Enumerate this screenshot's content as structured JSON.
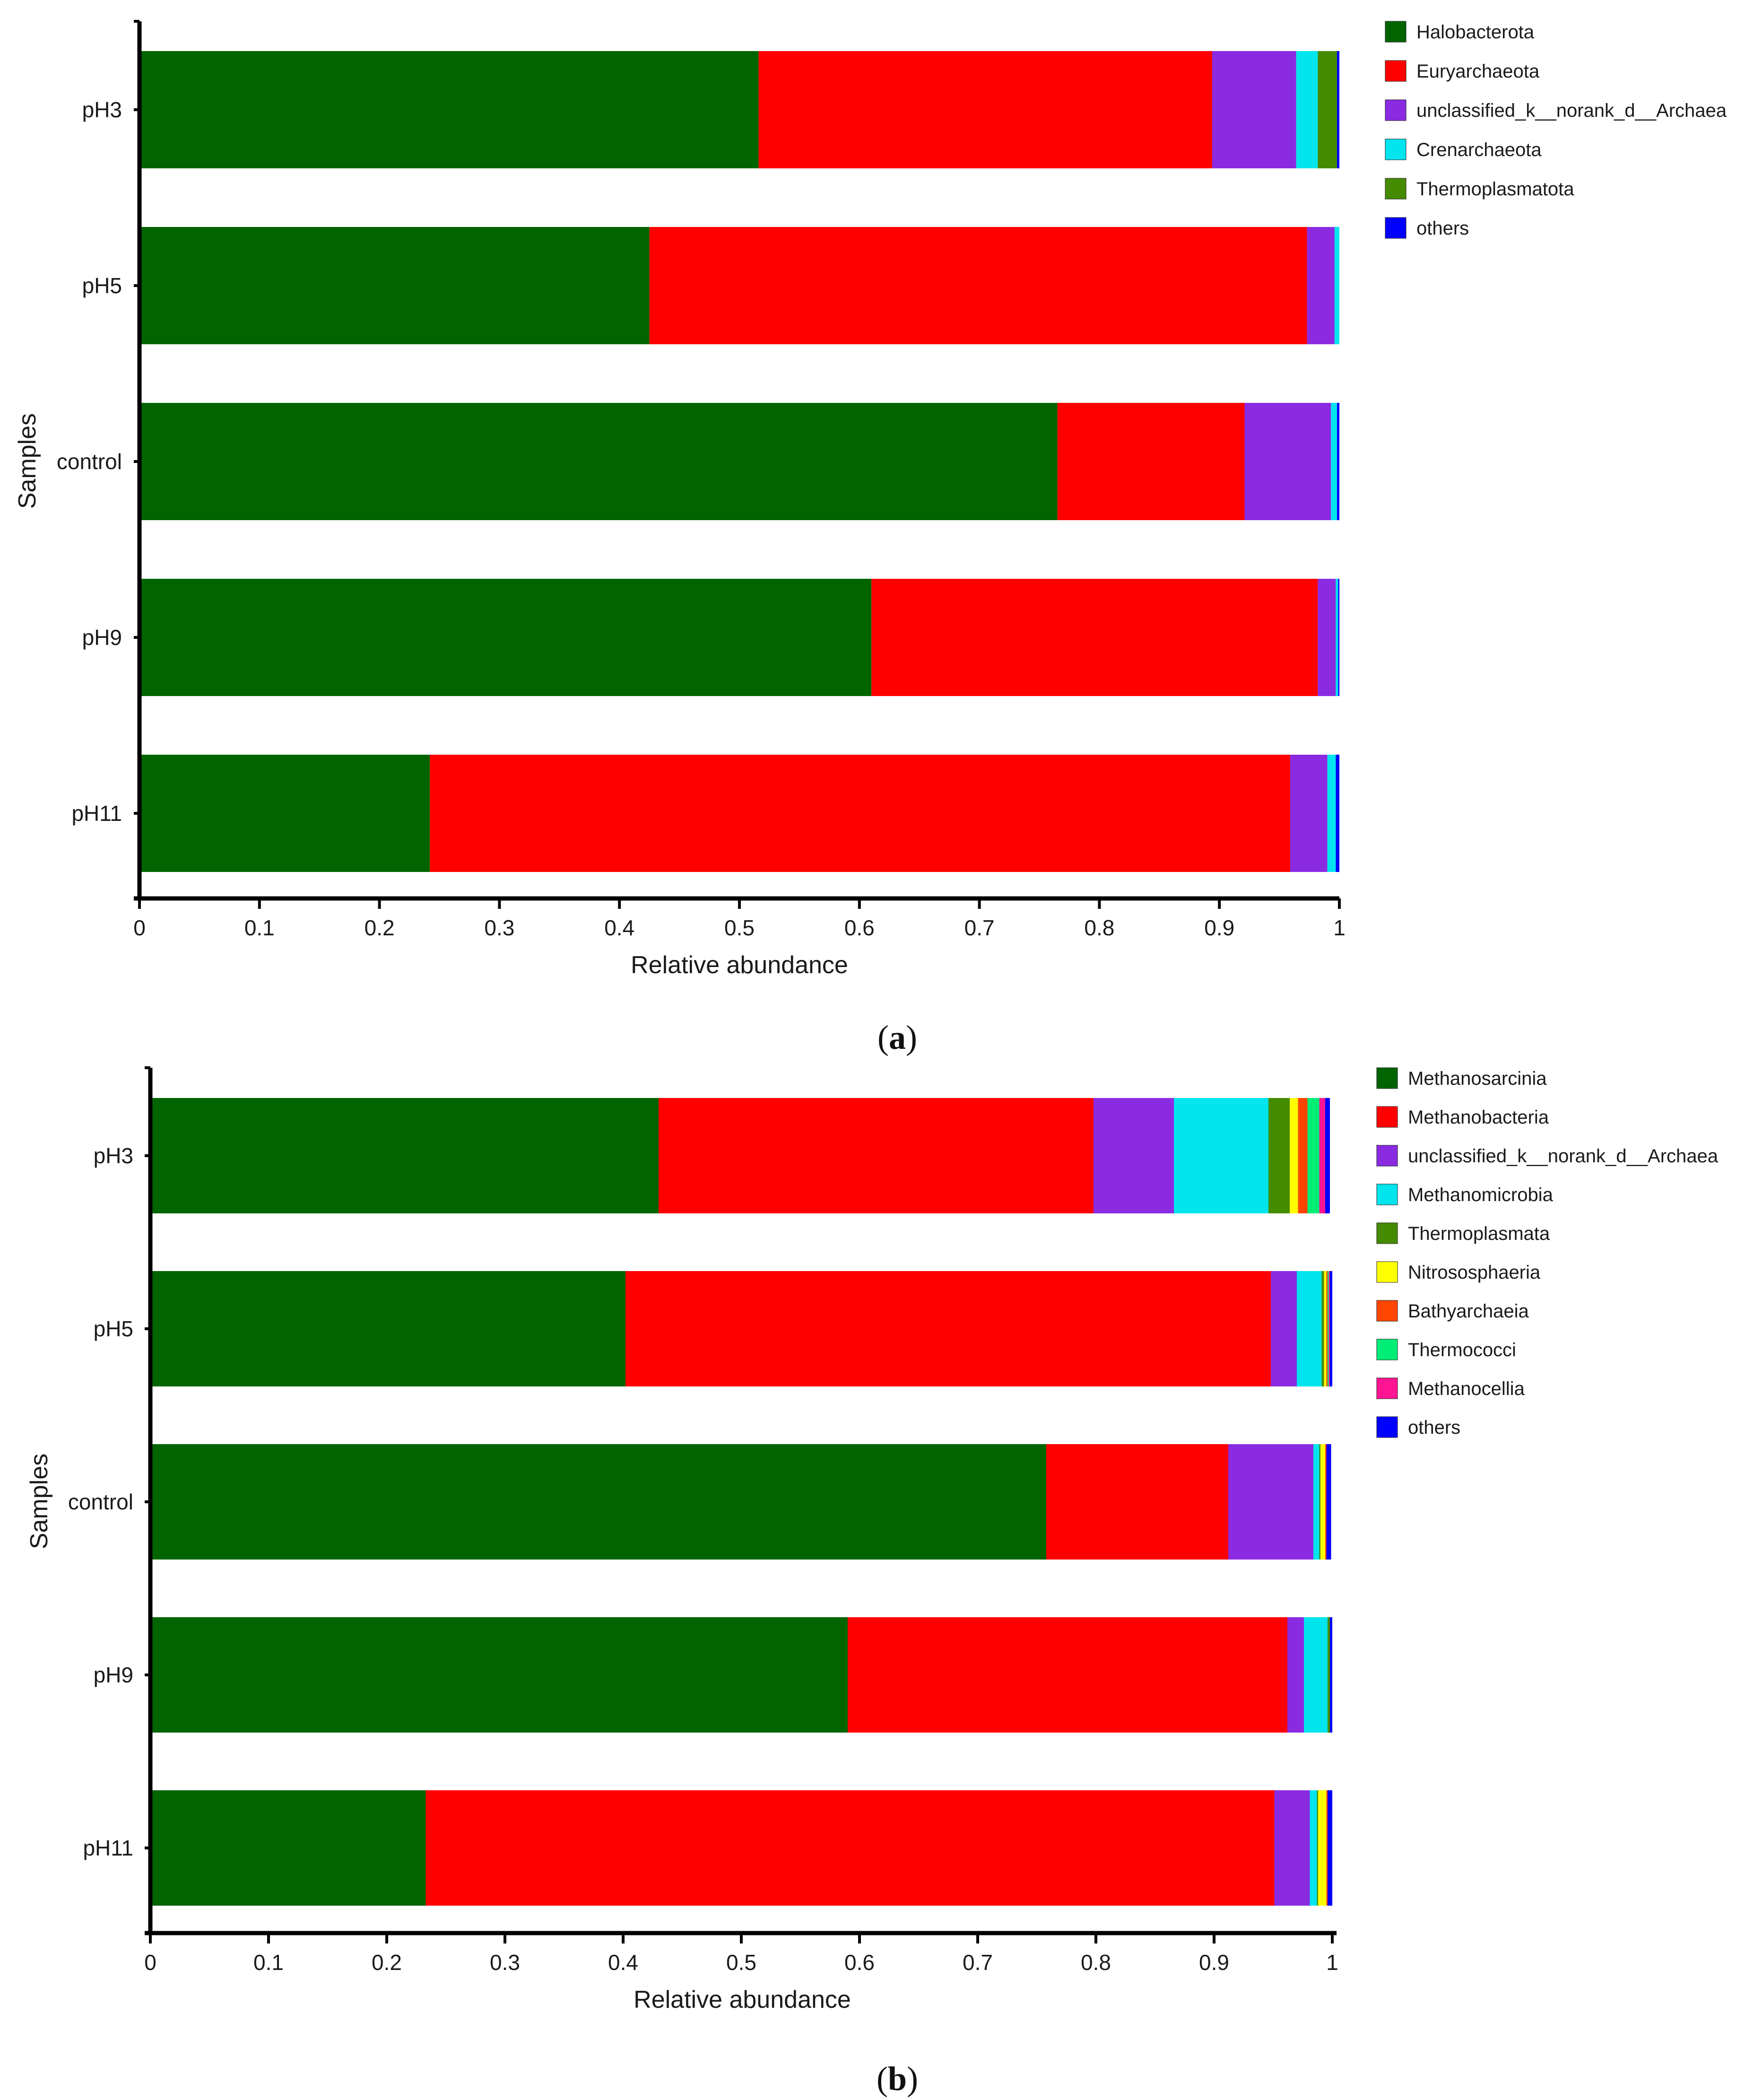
{
  "chart_data": [
    {
      "type": "bar",
      "orientation": "horizontal",
      "stacked": true,
      "panel_label": "a",
      "xlabel": "Relative abundance",
      "ylabel": "Samples",
      "xlim": [
        0,
        1
      ],
      "x_ticks": [
        "0",
        "0.1",
        "0.2",
        "0.3",
        "0.4",
        "0.5",
        "0.6",
        "0.7",
        "0.8",
        "0.9",
        "1"
      ],
      "categories": [
        "pH3",
        "pH5",
        "control",
        "pH9",
        "pH11"
      ],
      "legend_position": "top-right",
      "series": [
        {
          "name": "Halobacterota",
          "color": "#006400",
          "values": [
            0.516,
            0.425,
            0.765,
            0.61,
            0.242
          ]
        },
        {
          "name": "Euryarchaeota",
          "color": "#ff0000",
          "values": [
            0.378,
            0.548,
            0.156,
            0.372,
            0.717
          ]
        },
        {
          "name": "unclassified_k__norank_d__Archaea",
          "color": "#8a2be2",
          "values": [
            0.07,
            0.023,
            0.072,
            0.015,
            0.031
          ]
        },
        {
          "name": "Crenarchaeota",
          "color": "#00e5ee",
          "values": [
            0.018,
            0.004,
            0.005,
            0.002,
            0.007
          ]
        },
        {
          "name": "Thermoplasmatota",
          "color": "#458b00",
          "values": [
            0.016,
            0.0,
            0.0,
            0.0,
            0.0
          ]
        },
        {
          "name": "others",
          "color": "#0000ff",
          "values": [
            0.002,
            0.0,
            0.002,
            0.001,
            0.003
          ]
        }
      ]
    },
    {
      "type": "bar",
      "orientation": "horizontal",
      "stacked": true,
      "panel_label": "b",
      "xlabel": "Relative abundance",
      "ylabel": "Samples",
      "xlim": [
        0,
        1
      ],
      "x_ticks": [
        "0",
        "0.1",
        "0.2",
        "0.3",
        "0.4",
        "0.5",
        "0.6",
        "0.7",
        "0.8",
        "0.9",
        "1"
      ],
      "categories": [
        "pH3",
        "pH5",
        "control",
        "pH9",
        "pH11"
      ],
      "legend_position": "top-right",
      "series": [
        {
          "name": "Methanosarcinia",
          "color": "#006400",
          "values": [
            0.43,
            0.402,
            0.758,
            0.59,
            0.233
          ]
        },
        {
          "name": "Methanobacteria",
          "color": "#ff0000",
          "values": [
            0.368,
            0.546,
            0.154,
            0.372,
            0.718
          ]
        },
        {
          "name": "unclassified_k__norank_d__Archaea",
          "color": "#8a2be2",
          "values": [
            0.068,
            0.022,
            0.072,
            0.014,
            0.03
          ]
        },
        {
          "name": "Methanomicrobia",
          "color": "#00e5ee",
          "values": [
            0.08,
            0.021,
            0.005,
            0.02,
            0.006
          ]
        },
        {
          "name": "Thermoplasmata",
          "color": "#458b00",
          "values": [
            0.018,
            0.002,
            0.001,
            0.002,
            0.001
          ]
        },
        {
          "name": "Nitrososphaeria",
          "color": "#ffff00",
          "values": [
            0.007,
            0.002,
            0.004,
            0.0,
            0.007
          ]
        },
        {
          "name": "Bathyarchaeia",
          "color": "#ff4500",
          "values": [
            0.008,
            0.001,
            0.001,
            0.0,
            0.001
          ]
        },
        {
          "name": "Thermococci",
          "color": "#00ee76",
          "values": [
            0.01,
            0.001,
            0.0,
            0.0,
            0.0
          ]
        },
        {
          "name": "Methanocellia",
          "color": "#ff1493",
          "values": [
            0.005,
            0.001,
            0.0,
            0.0,
            0.0
          ]
        },
        {
          "name": "others",
          "color": "#0000ff",
          "values": [
            0.004,
            0.002,
            0.004,
            0.002,
            0.004
          ]
        }
      ]
    }
  ]
}
